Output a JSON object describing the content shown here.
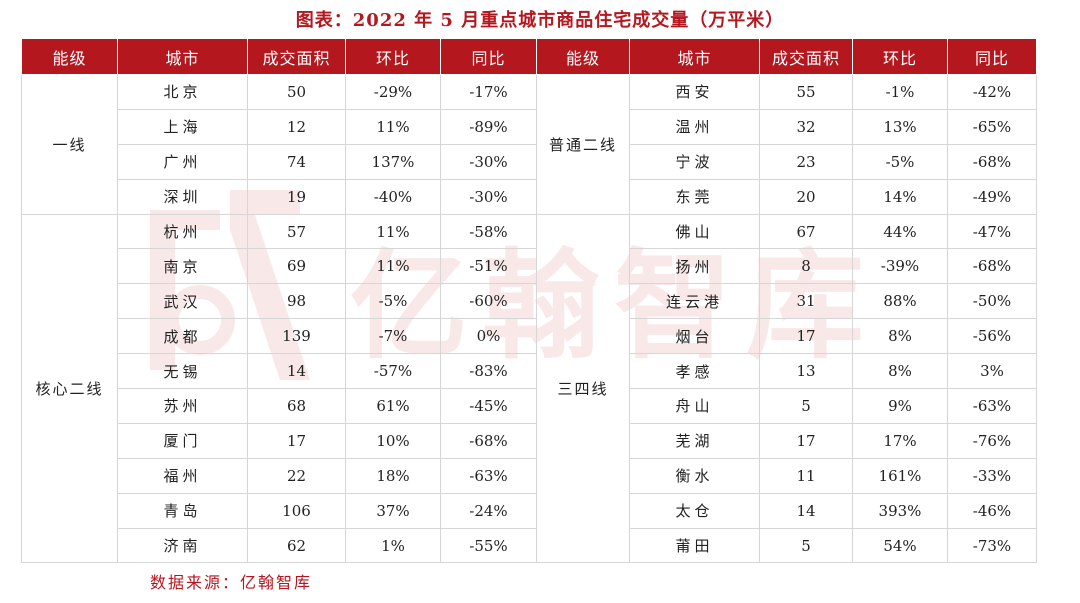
{
  "title": "图表：2022 年 5 月重点城市商品住宅成交量（万平米）",
  "headers": [
    "能级",
    "城市",
    "成交面积",
    "环比",
    "同比",
    "能级",
    "城市",
    "成交面积",
    "环比",
    "同比"
  ],
  "left_groups": [
    {
      "label": "一线",
      "rows": [
        [
          "北京",
          "50",
          "-29%",
          "-17%"
        ],
        [
          "上海",
          "12",
          "11%",
          "-89%"
        ],
        [
          "广州",
          "74",
          "137%",
          "-30%"
        ],
        [
          "深圳",
          "19",
          "-40%",
          "-30%"
        ]
      ]
    },
    {
      "label": "核心二线",
      "rows": [
        [
          "杭州",
          "57",
          "11%",
          "-58%"
        ],
        [
          "南京",
          "69",
          "11%",
          "-51%"
        ],
        [
          "武汉",
          "98",
          "-5%",
          "-60%"
        ],
        [
          "成都",
          "139",
          "-7%",
          "0%"
        ],
        [
          "无锡",
          "14",
          "-57%",
          "-83%"
        ],
        [
          "苏州",
          "68",
          "61%",
          "-45%"
        ],
        [
          "厦门",
          "17",
          "10%",
          "-68%"
        ],
        [
          "福州",
          "22",
          "18%",
          "-63%"
        ],
        [
          "青岛",
          "106",
          "37%",
          "-24%"
        ],
        [
          "济南",
          "62",
          "1%",
          "-55%"
        ]
      ]
    }
  ],
  "right_groups": [
    {
      "label": "普通二线",
      "rows": [
        [
          "西安",
          "55",
          "-1%",
          "-42%"
        ],
        [
          "温州",
          "32",
          "13%",
          "-65%"
        ],
        [
          "宁波",
          "23",
          "-5%",
          "-68%"
        ],
        [
          "东莞",
          "20",
          "14%",
          "-49%"
        ]
      ]
    },
    {
      "label": "三四线",
      "rows": [
        [
          "佛山",
          "67",
          "44%",
          "-47%"
        ],
        [
          "扬州",
          "8",
          "-39%",
          "-68%"
        ],
        [
          "连云港",
          "31",
          "88%",
          "-50%"
        ],
        [
          "烟台",
          "17",
          "8%",
          "-56%"
        ],
        [
          "孝感",
          "13",
          "8%",
          "3%"
        ],
        [
          "舟山",
          "5",
          "9%",
          "-63%"
        ],
        [
          "芜湖",
          "17",
          "17%",
          "-76%"
        ],
        [
          "衡水",
          "11",
          "161%",
          "-33%"
        ],
        [
          "太仓",
          "14",
          "393%",
          "-46%"
        ],
        [
          "莆田",
          "5",
          "54%",
          "-73%"
        ]
      ]
    }
  ],
  "watermark": "亿翰智库",
  "source": "数据来源：亿翰智库",
  "colors": {
    "header_bg": "#b5171f",
    "accent": "#b5171f",
    "border": "#d6d6d6"
  }
}
